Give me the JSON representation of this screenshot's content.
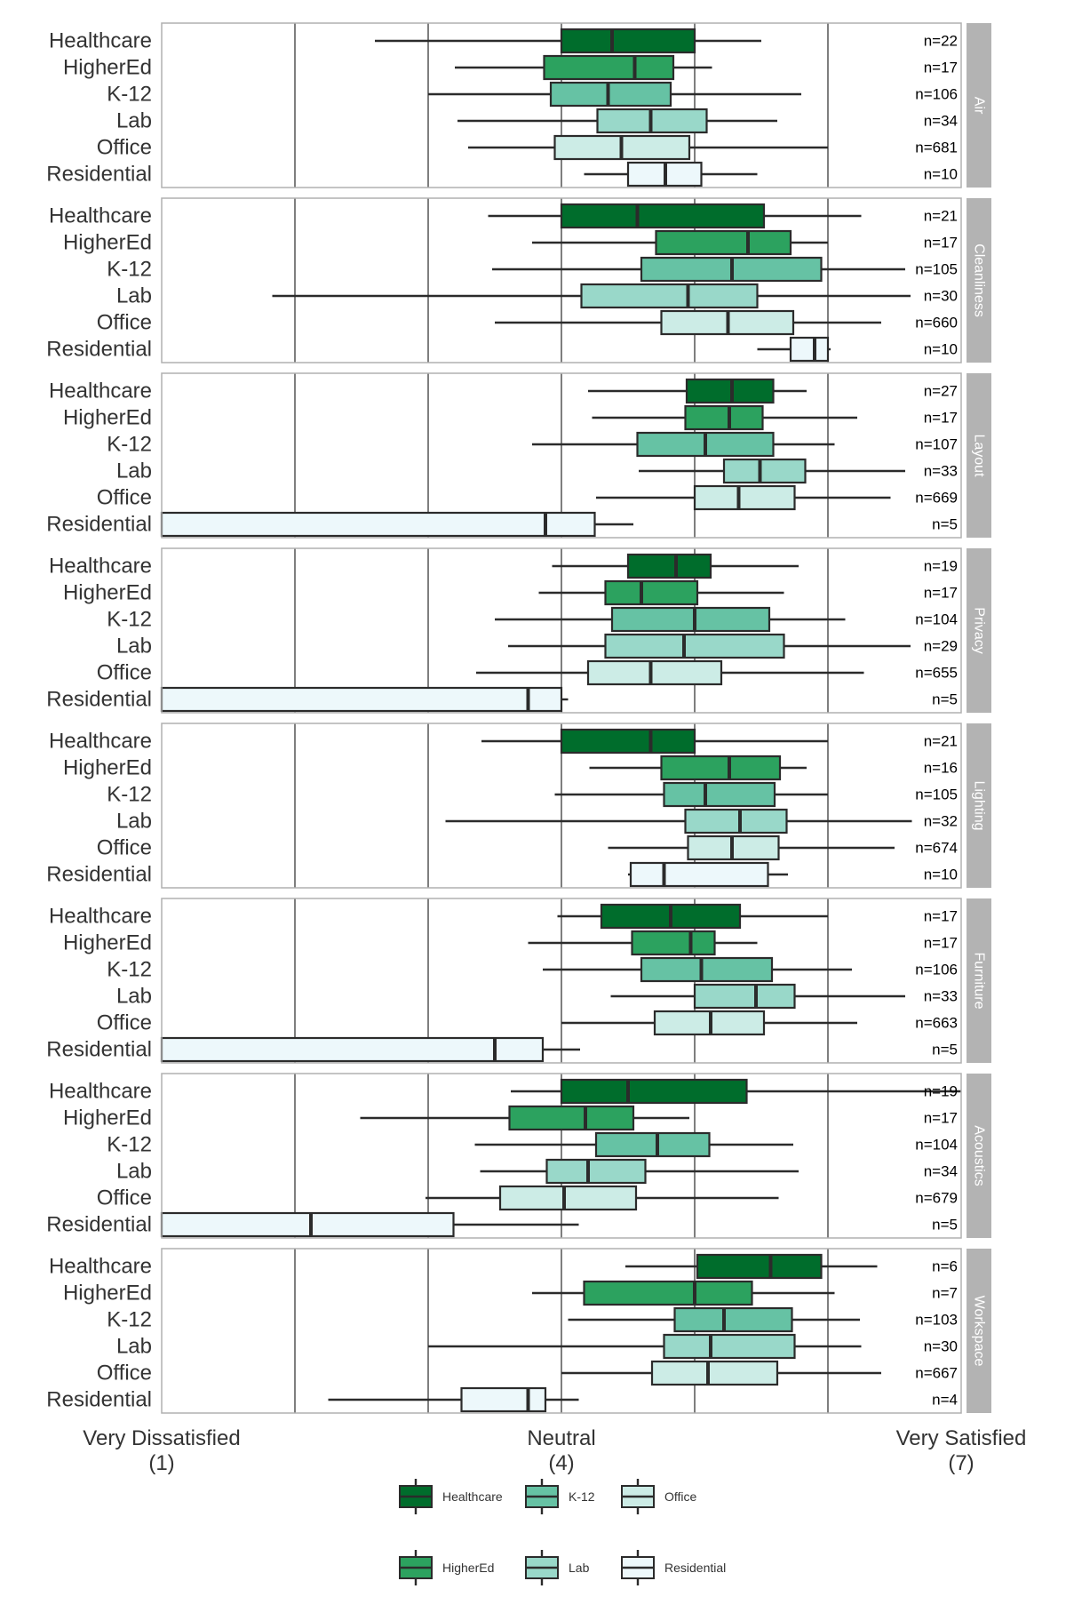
{
  "chart_data": {
    "type": "boxplot",
    "orientation": "horizontal",
    "x_range": [
      1,
      7
    ],
    "x_ticks": [
      {
        "value": 1,
        "label": "Very Dissatisfied",
        "sublabel": "(1)"
      },
      {
        "value": 4,
        "label": "Neutral",
        "sublabel": "(4)"
      },
      {
        "value": 7,
        "label": "Very Satisfied",
        "sublabel": "(7)"
      }
    ],
    "gridlines": [
      2,
      3,
      4,
      5,
      6
    ],
    "categories": [
      "Healthcare",
      "HigherEd",
      "K-12",
      "Lab",
      "Office",
      "Residential"
    ],
    "colors": {
      "Healthcare": "#006d2c",
      "HigherEd": "#2ca25f",
      "K-12": "#66c2a4",
      "Lab": "#99d8c9",
      "Office": "#ccece6",
      "Residential": "#edf8fb"
    },
    "facets": [
      {
        "name": "Air",
        "rows": [
          {
            "cat": "Healthcare",
            "n": "n=22",
            "wlo": 2.6,
            "q1": 4.0,
            "med": 4.38,
            "q3": 5.0,
            "whi": 5.5
          },
          {
            "cat": "HigherEd",
            "n": "n=17",
            "wlo": 3.2,
            "q1": 3.87,
            "med": 4.55,
            "q3": 4.84,
            "whi": 5.13
          },
          {
            "cat": "K-12",
            "n": "n=106",
            "wlo": 3.0,
            "q1": 3.92,
            "med": 4.35,
            "q3": 4.82,
            "whi": 5.8
          },
          {
            "cat": "Lab",
            "n": "n=34",
            "wlo": 3.22,
            "q1": 4.27,
            "med": 4.67,
            "q3": 5.09,
            "whi": 5.62
          },
          {
            "cat": "Office",
            "n": "n=681",
            "wlo": 3.3,
            "q1": 3.95,
            "med": 4.45,
            "q3": 4.96,
            "whi": 6.0
          },
          {
            "cat": "Residential",
            "n": "n=10",
            "wlo": 4.17,
            "q1": 4.5,
            "med": 4.78,
            "q3": 5.05,
            "whi": 5.47
          }
        ]
      },
      {
        "name": "Cleanliness",
        "rows": [
          {
            "cat": "Healthcare",
            "n": "n=21",
            "wlo": 3.45,
            "q1": 4.0,
            "med": 4.57,
            "q3": 5.52,
            "whi": 6.25
          },
          {
            "cat": "HigherEd",
            "n": "n=17",
            "wlo": 3.78,
            "q1": 4.71,
            "med": 5.4,
            "q3": 5.72,
            "whi": 6.0
          },
          {
            "cat": "K-12",
            "n": "n=105",
            "wlo": 3.48,
            "q1": 4.6,
            "med": 5.28,
            "q3": 5.95,
            "whi": 6.58
          },
          {
            "cat": "Lab",
            "n": "n=30",
            "wlo": 1.83,
            "q1": 4.15,
            "med": 4.95,
            "q3": 5.47,
            "whi": 6.62
          },
          {
            "cat": "Office",
            "n": "n=660",
            "wlo": 3.5,
            "q1": 4.75,
            "med": 5.25,
            "q3": 5.74,
            "whi": 6.4
          },
          {
            "cat": "Residential",
            "n": "n=10",
            "wlo": 5.47,
            "q1": 5.72,
            "med": 5.9,
            "q3": 6.0,
            "whi": 6.02
          }
        ]
      },
      {
        "name": "Layout",
        "rows": [
          {
            "cat": "Healthcare",
            "n": "n=27",
            "wlo": 4.2,
            "q1": 4.94,
            "med": 5.28,
            "q3": 5.59,
            "whi": 5.84
          },
          {
            "cat": "HigherEd",
            "n": "n=17",
            "wlo": 4.23,
            "q1": 4.93,
            "med": 5.26,
            "q3": 5.51,
            "whi": 6.22
          },
          {
            "cat": "K-12",
            "n": "n=107",
            "wlo": 3.78,
            "q1": 4.57,
            "med": 5.08,
            "q3": 5.59,
            "whi": 6.05
          },
          {
            "cat": "Lab",
            "n": "n=33",
            "wlo": 4.58,
            "q1": 5.22,
            "med": 5.49,
            "q3": 5.83,
            "whi": 6.58
          },
          {
            "cat": "Office",
            "n": "n=669",
            "wlo": 4.26,
            "q1": 5.0,
            "med": 5.33,
            "q3": 5.75,
            "whi": 6.47
          },
          {
            "cat": "Residential",
            "n": "n=5",
            "wlo": 1.0,
            "q1": 1.0,
            "med": 3.88,
            "q3": 4.25,
            "whi": 4.54
          }
        ]
      },
      {
        "name": "Privacy",
        "rows": [
          {
            "cat": "Healthcare",
            "n": "n=19",
            "wlo": 3.93,
            "q1": 4.5,
            "med": 4.86,
            "q3": 5.12,
            "whi": 5.78
          },
          {
            "cat": "HigherEd",
            "n": "n=17",
            "wlo": 3.83,
            "q1": 4.33,
            "med": 4.6,
            "q3": 5.02,
            "whi": 5.67
          },
          {
            "cat": "K-12",
            "n": "n=104",
            "wlo": 3.5,
            "q1": 4.38,
            "med": 5.0,
            "q3": 5.56,
            "whi": 6.13
          },
          {
            "cat": "Lab",
            "n": "n=29",
            "wlo": 3.6,
            "q1": 4.33,
            "med": 4.92,
            "q3": 5.67,
            "whi": 6.62
          },
          {
            "cat": "Office",
            "n": "n=655",
            "wlo": 3.36,
            "q1": 4.2,
            "med": 4.67,
            "q3": 5.2,
            "whi": 6.27
          },
          {
            "cat": "Residential",
            "n": "n=5",
            "wlo": 1.0,
            "q1": 1.0,
            "med": 3.75,
            "q3": 4.0,
            "whi": 4.05
          }
        ]
      },
      {
        "name": "Lighting",
        "rows": [
          {
            "cat": "Healthcare",
            "n": "n=21",
            "wlo": 3.4,
            "q1": 4.0,
            "med": 4.67,
            "q3": 5.0,
            "whi": 6.0
          },
          {
            "cat": "HigherEd",
            "n": "n=16",
            "wlo": 4.21,
            "q1": 4.75,
            "med": 5.26,
            "q3": 5.64,
            "whi": 5.84
          },
          {
            "cat": "K-12",
            "n": "n=105",
            "wlo": 3.95,
            "q1": 4.77,
            "med": 5.08,
            "q3": 5.6,
            "whi": 6.0
          },
          {
            "cat": "Lab",
            "n": "n=32",
            "wlo": 3.13,
            "q1": 4.93,
            "med": 5.34,
            "q3": 5.69,
            "whi": 6.63
          },
          {
            "cat": "Office",
            "n": "n=674",
            "wlo": 4.35,
            "q1": 4.95,
            "med": 5.28,
            "q3": 5.63,
            "whi": 6.5
          },
          {
            "cat": "Residential",
            "n": "n=10",
            "wlo": 4.5,
            "q1": 4.52,
            "med": 4.77,
            "q3": 5.55,
            "whi": 5.7
          }
        ]
      },
      {
        "name": "Furniture",
        "rows": [
          {
            "cat": "Healthcare",
            "n": "n=17",
            "wlo": 3.97,
            "q1": 4.3,
            "med": 4.82,
            "q3": 5.34,
            "whi": 6.0
          },
          {
            "cat": "HigherEd",
            "n": "n=17",
            "wlo": 3.75,
            "q1": 4.53,
            "med": 4.97,
            "q3": 5.15,
            "whi": 5.47
          },
          {
            "cat": "K-12",
            "n": "n=106",
            "wlo": 3.86,
            "q1": 4.6,
            "med": 5.05,
            "q3": 5.58,
            "whi": 6.18
          },
          {
            "cat": "Lab",
            "n": "n=33",
            "wlo": 4.37,
            "q1": 5.0,
            "med": 5.46,
            "q3": 5.75,
            "whi": 6.58
          },
          {
            "cat": "Office",
            "n": "n=663",
            "wlo": 4.0,
            "q1": 4.7,
            "med": 5.12,
            "q3": 5.52,
            "whi": 6.22
          },
          {
            "cat": "Residential",
            "n": "n=5",
            "wlo": 1.0,
            "q1": 1.0,
            "med": 3.5,
            "q3": 3.86,
            "whi": 4.14
          }
        ]
      },
      {
        "name": "Acoustics",
        "rows": [
          {
            "cat": "Healthcare",
            "n": "n=19",
            "wlo": 3.62,
            "q1": 4.0,
            "med": 4.5,
            "q3": 5.39,
            "whi": 7.0
          },
          {
            "cat": "HigherEd",
            "n": "n=17",
            "wlo": 2.49,
            "q1": 3.61,
            "med": 4.18,
            "q3": 4.54,
            "whi": 4.96
          },
          {
            "cat": "K-12",
            "n": "n=104",
            "wlo": 3.35,
            "q1": 4.26,
            "med": 4.72,
            "q3": 5.11,
            "whi": 5.74
          },
          {
            "cat": "Lab",
            "n": "n=34",
            "wlo": 3.39,
            "q1": 3.89,
            "med": 4.2,
            "q3": 4.63,
            "whi": 5.78
          },
          {
            "cat": "Office",
            "n": "n=679",
            "wlo": 2.98,
            "q1": 3.54,
            "med": 4.02,
            "q3": 4.56,
            "whi": 5.63
          },
          {
            "cat": "Residential",
            "n": "n=5",
            "wlo": 1.0,
            "q1": 1.0,
            "med": 2.12,
            "q3": 3.19,
            "whi": 4.13
          }
        ]
      },
      {
        "name": "Workspace",
        "rows": [
          {
            "cat": "Healthcare",
            "n": "n=6",
            "wlo": 4.48,
            "q1": 5.02,
            "med": 5.57,
            "q3": 5.95,
            "whi": 6.37
          },
          {
            "cat": "HigherEd",
            "n": "n=7",
            "wlo": 3.78,
            "q1": 4.17,
            "med": 5.0,
            "q3": 5.43,
            "whi": 6.05
          },
          {
            "cat": "K-12",
            "n": "n=103",
            "wlo": 4.05,
            "q1": 4.85,
            "med": 5.22,
            "q3": 5.73,
            "whi": 6.24
          },
          {
            "cat": "Lab",
            "n": "n=30",
            "wlo": 3.0,
            "q1": 4.77,
            "med": 5.12,
            "q3": 5.75,
            "whi": 6.25
          },
          {
            "cat": "Office",
            "n": "n=667",
            "wlo": 4.0,
            "q1": 4.68,
            "med": 5.1,
            "q3": 5.62,
            "whi": 6.4
          },
          {
            "cat": "Residential",
            "n": "n=4",
            "wlo": 2.25,
            "q1": 3.25,
            "med": 3.75,
            "q3": 3.88,
            "whi": 4.13
          }
        ]
      }
    ],
    "legend": {
      "position": "bottom",
      "entries": [
        "Healthcare",
        "K-12",
        "Office",
        "HigherEd",
        "Lab",
        "Residential"
      ]
    }
  }
}
